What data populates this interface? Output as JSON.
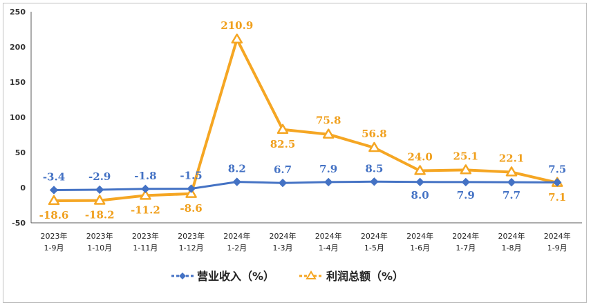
{
  "chart_data": {
    "type": "line",
    "categories": [
      [
        "2023年",
        "1-9月"
      ],
      [
        "2023年",
        "1-10月"
      ],
      [
        "2023年",
        "1-11月"
      ],
      [
        "2023年",
        "1-12月"
      ],
      [
        "2024年",
        "1-2月"
      ],
      [
        "2024年",
        "1-3月"
      ],
      [
        "2024年",
        "1-4月"
      ],
      [
        "2024年",
        "1-5月"
      ],
      [
        "2024年",
        "1-6月"
      ],
      [
        "2024年",
        "1-7月"
      ],
      [
        "2024年",
        "1-8月"
      ],
      [
        "2024年",
        "1-9月"
      ]
    ],
    "series": [
      {
        "name": "营业收入（%）",
        "color": "#4472C4",
        "marker": "diamond",
        "values": [
          -3.4,
          -2.9,
          -1.8,
          -1.5,
          8.2,
          6.7,
          7.9,
          8.5,
          8.0,
          7.9,
          7.7,
          7.5
        ],
        "labels": [
          "-3.4",
          "-2.9",
          "-1.8",
          "-1.5",
          "8.2",
          "6.7",
          "7.9",
          "8.5",
          "8.0",
          "7.9",
          "7.7",
          "7.5"
        ],
        "label_pos": [
          "above",
          "above",
          "above",
          "above",
          "above",
          "above",
          "above",
          "above",
          "below",
          "below",
          "below",
          "above"
        ]
      },
      {
        "name": "利润总额（%）",
        "color": "#F5A623",
        "marker": "triangle",
        "values": [
          -18.6,
          -18.2,
          -11.2,
          -8.6,
          210.9,
          82.5,
          75.8,
          56.8,
          24.0,
          25.1,
          22.1,
          7.1
        ],
        "labels": [
          "-18.6",
          "-18.2",
          "-11.2",
          "-8.6",
          "210.9",
          "82.5",
          "75.8",
          "56.8",
          "24.0",
          "25.1",
          "22.1",
          "7.1"
        ],
        "label_pos": [
          "below",
          "below",
          "below",
          "below",
          "above",
          "below",
          "above",
          "above",
          "above",
          "above",
          "above",
          "below"
        ]
      }
    ],
    "y_ticks": [
      "250",
      "200",
      "150",
      "100",
      "50",
      "0",
      "-50"
    ],
    "ylim": [
      -50,
      250
    ],
    "legend_position": "bottom",
    "grid": false
  }
}
